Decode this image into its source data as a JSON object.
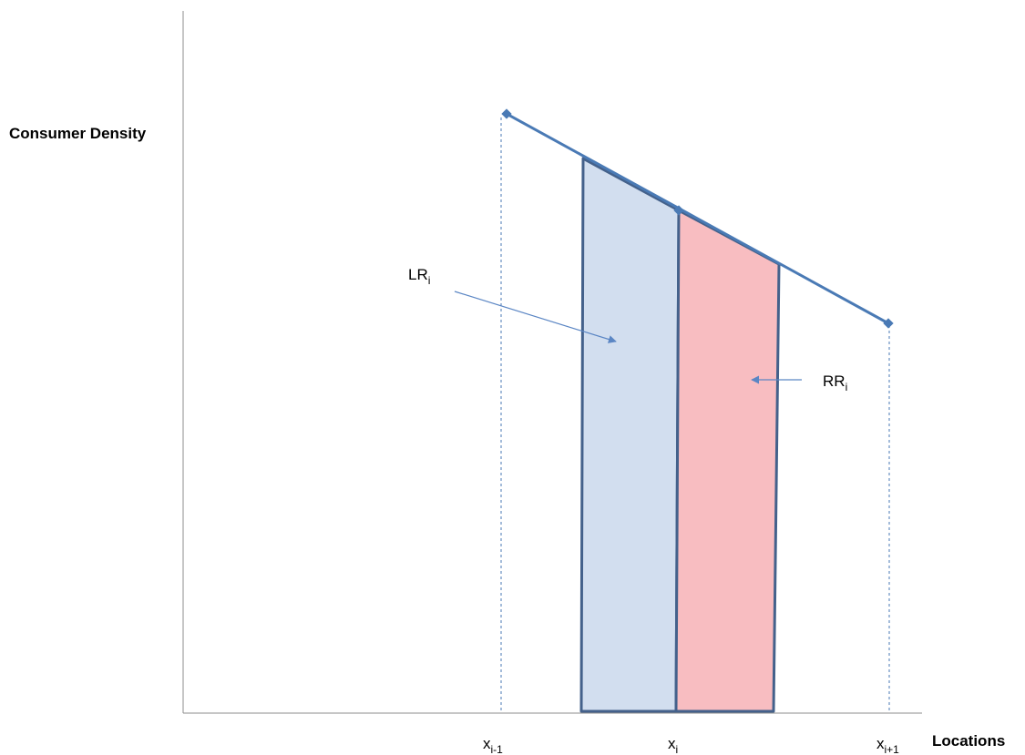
{
  "diagram": {
    "axes": {
      "y_label": "Consumer Density",
      "x_label": "Locations"
    },
    "x_ticks": [
      {
        "base": "x",
        "sub": "i-1"
      },
      {
        "base": "x",
        "sub": "i"
      },
      {
        "base": "x",
        "sub": "i+1"
      }
    ],
    "regions": {
      "left": {
        "label_base": "LR",
        "label_sub": "i",
        "fill": "#d2deef",
        "stroke": "#44618b"
      },
      "right": {
        "label_base": "RR",
        "label_sub": "i",
        "fill": "#f8bdc1",
        "stroke": "#44618b"
      }
    },
    "colors": {
      "density_line": "#4a7ab5",
      "axis": "#8c8c8c",
      "guide": "#4a7ab5",
      "arrow": "#5b86c4"
    }
  }
}
